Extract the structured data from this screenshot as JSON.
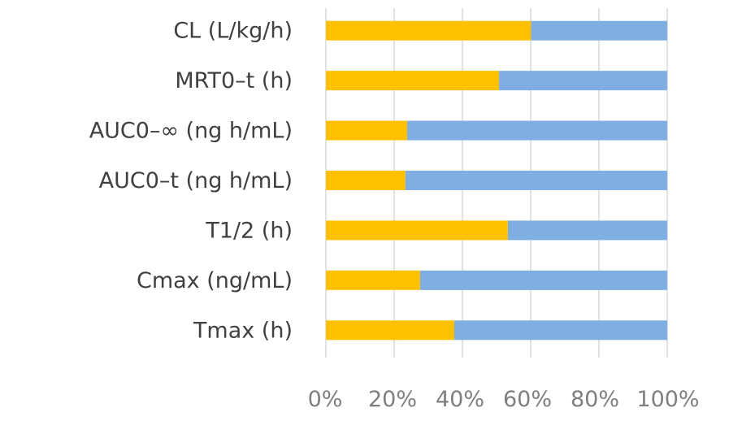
{
  "chart_data": {
    "type": "bar",
    "orientation": "horizontal",
    "stacked": "percent",
    "title": "",
    "xlabel": "",
    "ylabel": "",
    "categories": [
      "Tmax (h)",
      "Cmax (ng/mL)",
      "T1/2 (h)",
      "AUC0–t (ng h/mL)",
      "AUC0–∞ (ng h/mL)",
      "MRT0–t (h)",
      "CL (L/kg/h)"
    ],
    "series": [
      {
        "color": "#ffc000",
        "values": [
          37.6,
          27.6,
          53.3,
          23.3,
          23.8,
          50.7,
          60.1
        ]
      },
      {
        "color": "#7faee3",
        "values": [
          62.4,
          72.4,
          46.7,
          76.7,
          76.2,
          49.3,
          39.9
        ]
      }
    ],
    "xlim": [
      0,
      100
    ],
    "x_ticks": [
      "0%",
      "20%",
      "40%",
      "60%",
      "80%",
      "100%"
    ],
    "grid": "vertical",
    "gridline_color": "#d9d9d9",
    "legend": "none"
  }
}
